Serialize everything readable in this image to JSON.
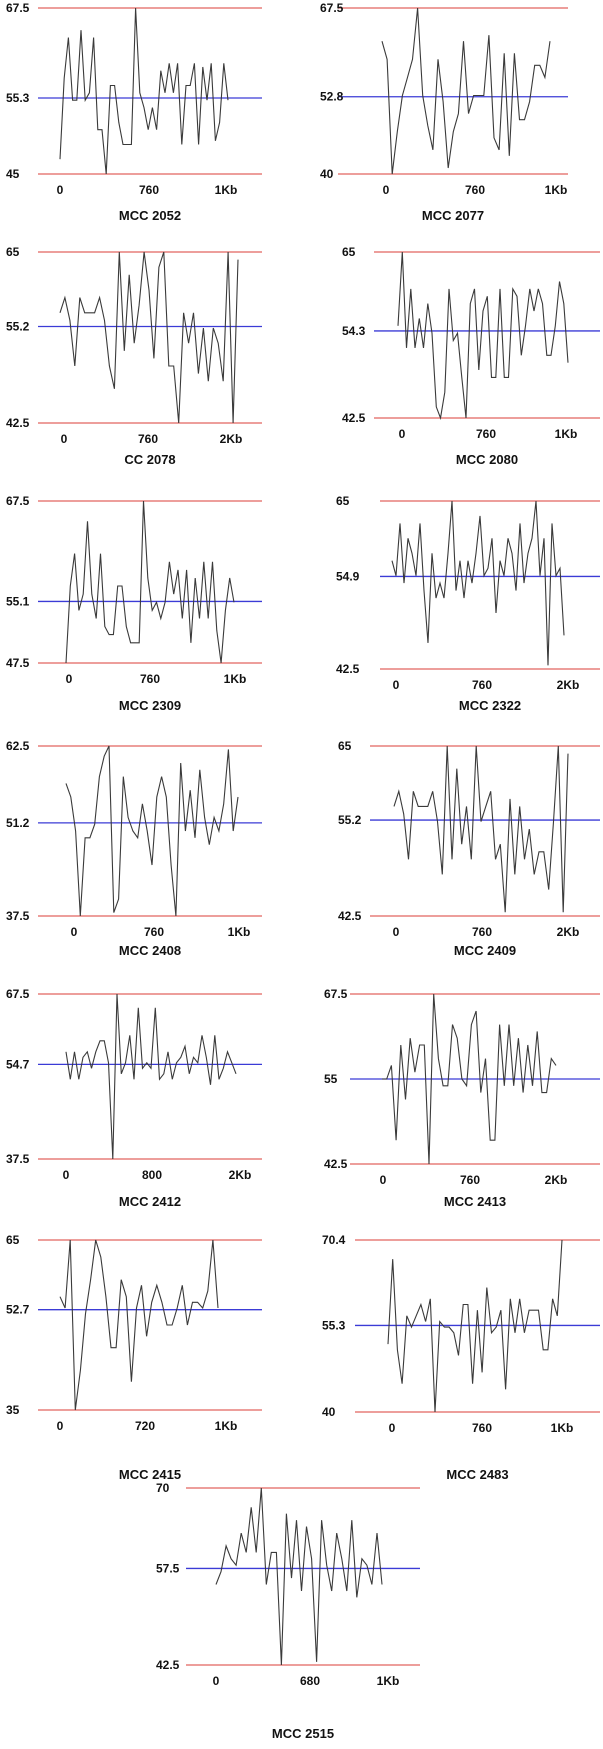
{
  "colors": {
    "bounds": "#e2645f",
    "mean": "#3b3bd6",
    "trace": "#3a3a3a"
  },
  "chart_data": [
    {
      "type": "line",
      "title": "MCC 2052",
      "ylim": [
        45,
        67.5
      ],
      "yticks": [
        "67.5",
        "55.3",
        "45"
      ],
      "mean": 55.3,
      "xticks": [
        "0",
        "760",
        "1Kb"
      ],
      "values": [
        47,
        58,
        63.5,
        55,
        55,
        64.5,
        55,
        56,
        63.5,
        51,
        51,
        45,
        57,
        57,
        52,
        49,
        49,
        49,
        67.5,
        56,
        54,
        51,
        54,
        51,
        59,
        56,
        60,
        56,
        60,
        49,
        57,
        57,
        60,
        49,
        59.5,
        55,
        60,
        49.5,
        52,
        60,
        55
      ]
    },
    {
      "type": "line",
      "title": "MCC 2077",
      "ylim": [
        40,
        67.5
      ],
      "yticks": [
        "67.5",
        "52.8",
        "40"
      ],
      "mean": 52.8,
      "xticks": [
        "0",
        "760",
        "1Kb"
      ],
      "values": [
        62,
        59,
        40,
        47,
        53,
        56,
        59,
        67.5,
        53,
        48,
        44,
        59,
        52,
        41,
        47,
        50,
        62,
        50,
        53,
        53,
        53,
        63,
        46,
        44,
        60,
        43,
        60,
        49,
        49,
        52,
        58,
        58,
        56,
        62
      ]
    },
    {
      "type": "line",
      "title": "CC 2078",
      "ylim": [
        42.5,
        65
      ],
      "yticks": [
        "65",
        "55.2",
        "42.5"
      ],
      "mean": 55.2,
      "xticks": [
        "0",
        "760",
        "2Kb"
      ],
      "values": [
        57,
        59,
        56,
        50,
        59,
        57,
        57,
        57,
        59,
        56,
        50,
        47,
        65,
        52,
        62,
        53,
        58,
        65,
        60,
        51,
        63,
        65,
        50,
        50,
        42.5,
        57,
        53,
        57,
        49,
        55,
        48,
        55,
        53,
        48,
        65,
        42.5,
        64
      ]
    },
    {
      "type": "line",
      "title": "MCC 2080",
      "ylim": [
        42.5,
        65
      ],
      "yticks": [
        "65",
        "54.3",
        "42.5"
      ],
      "mean": 54.3,
      "xticks": [
        "0",
        "760",
        "1Kb"
      ],
      "values": [
        55,
        65,
        52,
        60,
        52,
        56,
        52,
        58,
        54,
        44,
        42.5,
        46,
        60,
        53,
        54,
        48,
        42.5,
        58,
        60,
        49,
        57,
        59,
        48,
        48,
        60,
        48,
        48,
        60,
        59,
        51,
        55,
        60,
        57,
        60,
        58,
        51,
        51,
        55,
        61,
        58,
        50
      ]
    },
    {
      "type": "line",
      "title": "MCC 2309",
      "ylim": [
        47.5,
        67.5
      ],
      "yticks": [
        "67.5",
        "55.1",
        "47.5"
      ],
      "mean": 55.1,
      "xticks": [
        "0",
        "760",
        "1Kb"
      ],
      "values": [
        47.5,
        57,
        61,
        54,
        56,
        65,
        56,
        53,
        61,
        52,
        51,
        51,
        57,
        57,
        52,
        50,
        50,
        50,
        67.5,
        58,
        54,
        55,
        53,
        55,
        60,
        56,
        59,
        53,
        59,
        50,
        58,
        53,
        60,
        53,
        60,
        51.5,
        47.5,
        54,
        58,
        55
      ]
    },
    {
      "type": "line",
      "title": "MCC 2322",
      "ylim": [
        42.5,
        65
      ],
      "yticks": [
        "65",
        "54.9",
        "42.5"
      ],
      "mean": 54.9,
      "xticks": [
        "0",
        "760",
        "2Kb"
      ],
      "values": [
        57,
        55,
        62,
        54,
        60,
        58,
        55,
        62,
        53,
        46,
        58,
        52,
        54,
        52,
        58,
        65,
        53,
        57,
        52,
        57,
        54,
        58,
        63,
        55,
        56,
        60,
        50,
        57,
        55,
        60,
        58,
        53,
        62,
        54,
        58,
        60,
        65,
        55,
        60,
        43,
        62,
        55,
        56,
        47
      ]
    },
    {
      "type": "line",
      "title": "MCC 2408",
      "ylim": [
        37.5,
        62.5
      ],
      "yticks": [
        "62.5",
        "51.2",
        "37.5"
      ],
      "mean": 51.2,
      "xticks": [
        "0",
        "760",
        "1Kb"
      ],
      "values": [
        57,
        55,
        50,
        37.5,
        49,
        49,
        51,
        58,
        61,
        62.5,
        38,
        40,
        58,
        52,
        50,
        49,
        54,
        50,
        45,
        55,
        58,
        55,
        45,
        37.5,
        60,
        50,
        56,
        49,
        59,
        52,
        48,
        52,
        50,
        54,
        62,
        50,
        55
      ]
    },
    {
      "type": "line",
      "title": "MCC 2409",
      "ylim": [
        42.5,
        65
      ],
      "yticks": [
        "65",
        "55.2",
        "42.5"
      ],
      "mean": 55.2,
      "xticks": [
        "0",
        "760",
        "2Kb"
      ],
      "values": [
        57,
        59,
        56,
        50,
        59,
        57,
        57,
        57,
        59,
        55,
        48,
        65,
        50,
        62,
        52,
        57,
        50,
        65,
        55,
        57,
        59,
        50,
        52,
        43,
        58,
        48,
        57,
        50,
        54,
        48,
        51,
        51,
        46,
        55,
        65,
        43,
        64
      ]
    },
    {
      "type": "line",
      "title": "MCC 2412",
      "ylim": [
        37.5,
        67.5
      ],
      "yticks": [
        "67.5",
        "54.7",
        "37.5"
      ],
      "mean": 54.7,
      "xticks": [
        "0",
        "800",
        "2Kb"
      ],
      "values": [
        57,
        52,
        57,
        52,
        56,
        57,
        54,
        57,
        59,
        59,
        55,
        37.5,
        67.5,
        53,
        55,
        60,
        52,
        65,
        54,
        55,
        54,
        65,
        52,
        53,
        57,
        52,
        55,
        56,
        58,
        53,
        56,
        55,
        60,
        56,
        51,
        60,
        52,
        54,
        57,
        55,
        53
      ]
    },
    {
      "type": "line",
      "title": "MCC 2413",
      "ylim": [
        42.5,
        67.5
      ],
      "yticks": [
        "67.5",
        "55",
        "42.5"
      ],
      "mean": 55,
      "xticks": [
        "0",
        "760",
        "2Kb"
      ],
      "values": [
        55,
        55,
        57,
        46,
        60,
        52,
        61,
        56,
        60,
        60,
        42.5,
        67.5,
        58,
        54,
        54,
        63,
        61,
        55,
        54,
        63,
        65,
        53,
        58,
        46,
        46,
        63,
        54,
        63,
        54,
        61,
        53,
        60,
        54,
        62,
        53,
        53,
        58,
        57
      ]
    },
    {
      "type": "line",
      "title": "MCC 2415",
      "ylim": [
        35,
        65
      ],
      "yticks": [
        "65",
        "52.7",
        "35"
      ],
      "mean": 52.7,
      "xticks": [
        "0",
        "720",
        "1Kb"
      ],
      "values": [
        55,
        53,
        65,
        35,
        42,
        52,
        58,
        65,
        62,
        55,
        46,
        46,
        58,
        55,
        40,
        53,
        57,
        48,
        54,
        57,
        54,
        50,
        50,
        53,
        57,
        50,
        54,
        54,
        53,
        56,
        65,
        53
      ]
    },
    {
      "type": "line",
      "title": "MCC 2483",
      "ylim": [
        40,
        70.4
      ],
      "yticks": [
        "70.4",
        "55.3",
        "40"
      ],
      "mean": 55.3,
      "xticks": [
        "0",
        "760",
        "1Kb"
      ],
      "values": [
        52,
        67,
        51,
        45,
        57,
        55,
        57,
        59,
        56,
        60,
        40,
        56,
        55,
        55,
        54,
        50,
        59,
        59,
        45,
        58,
        47,
        62,
        54,
        55,
        58,
        44,
        60,
        54,
        60,
        54,
        58,
        58,
        58,
        51,
        51,
        60,
        57,
        70.4
      ]
    },
    {
      "type": "line",
      "title": "MCC 2515",
      "ylim": [
        42.5,
        70
      ],
      "yticks": [
        "70",
        "57.5",
        "42.5"
      ],
      "mean": 57.5,
      "xticks": [
        "0",
        "680",
        "1Kb"
      ],
      "values": [
        55,
        57,
        61,
        59,
        58,
        63,
        60,
        67,
        60,
        70,
        55,
        60,
        60,
        42.5,
        66,
        56,
        65,
        54,
        64,
        59,
        43,
        65,
        58,
        54,
        63,
        59,
        54,
        65,
        53,
        59,
        58,
        55,
        63,
        55
      ]
    }
  ]
}
